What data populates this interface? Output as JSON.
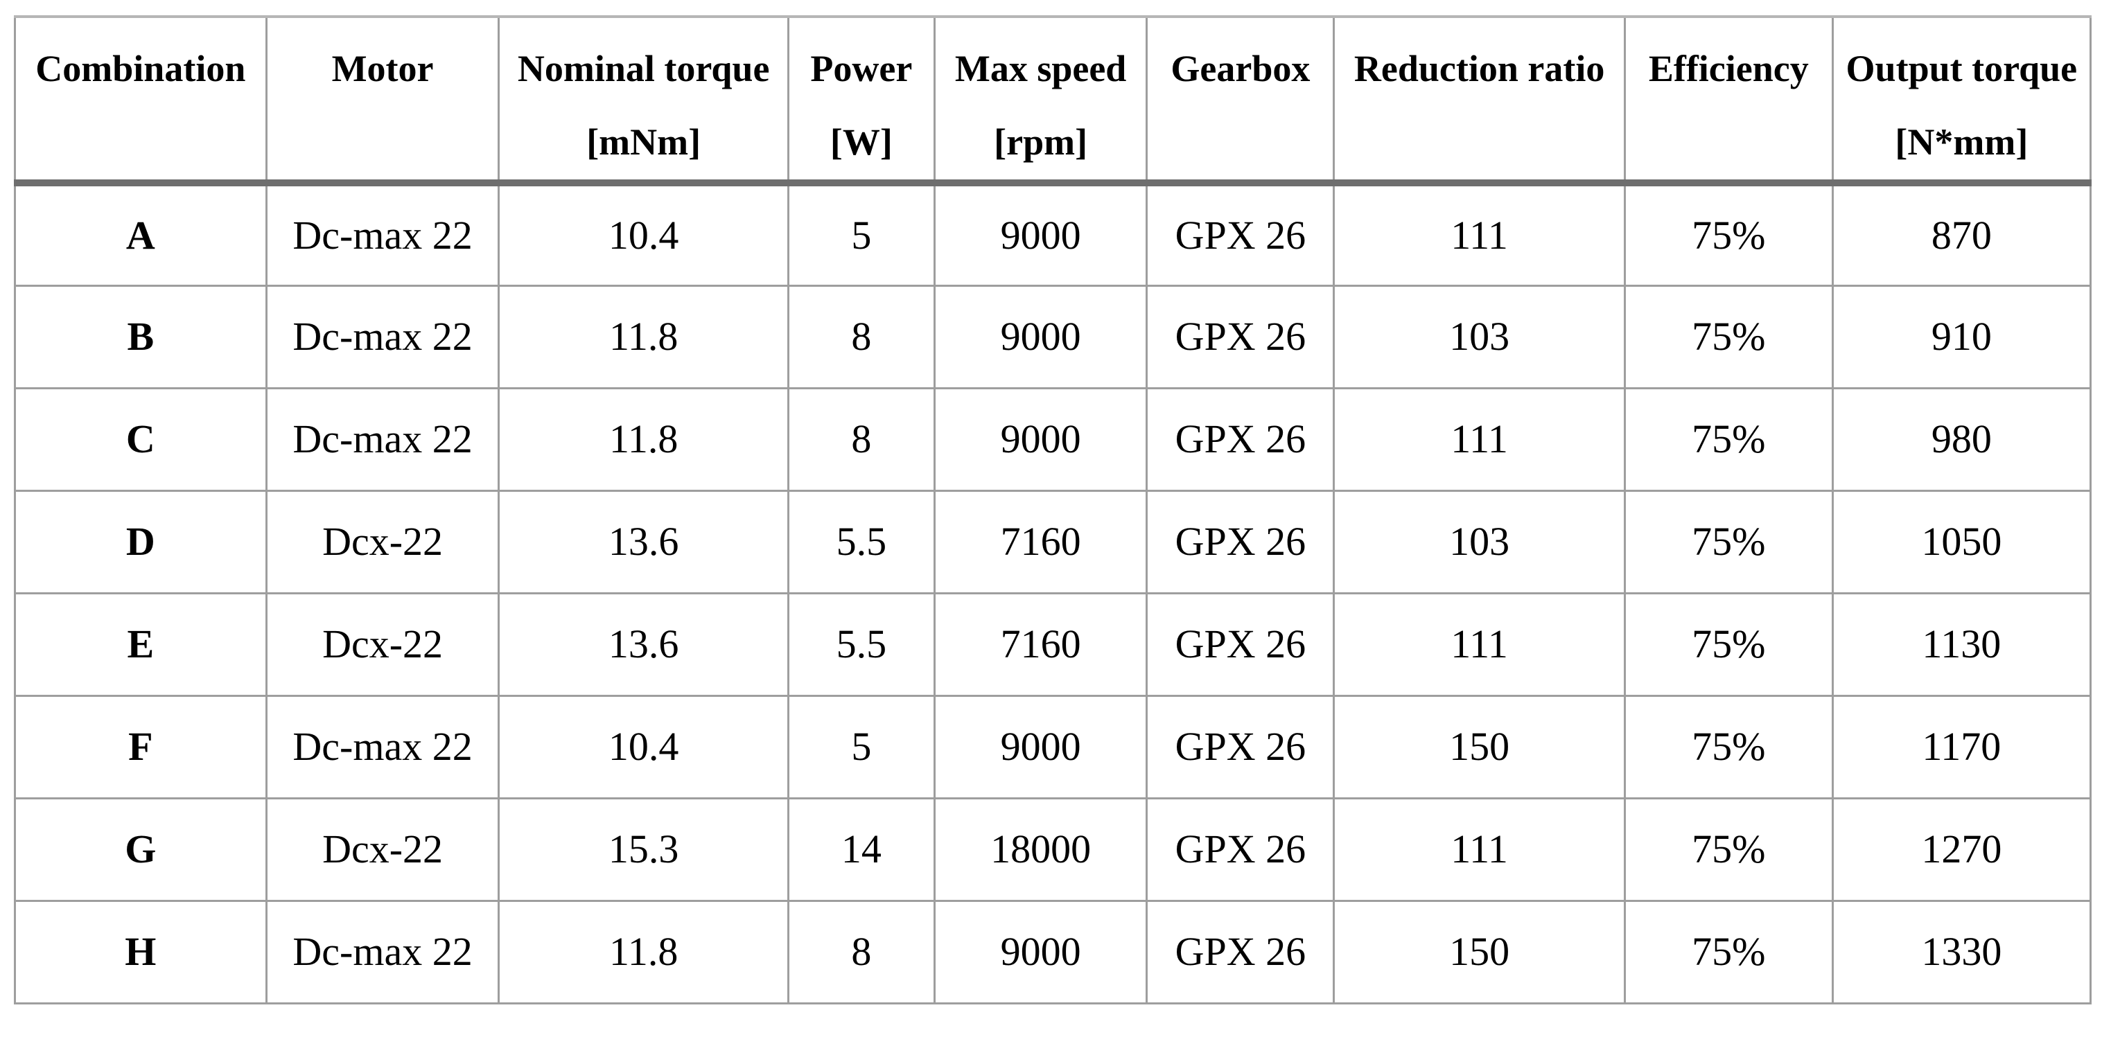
{
  "table": {
    "columns": [
      {
        "label": "Combination",
        "unit": ""
      },
      {
        "label": "Motor",
        "unit": ""
      },
      {
        "label": "Nominal torque",
        "unit": "[mNm]"
      },
      {
        "label": "Power",
        "unit": "[W]"
      },
      {
        "label": "Max speed",
        "unit": "[rpm]"
      },
      {
        "label": "Gearbox",
        "unit": ""
      },
      {
        "label": "Reduction ratio",
        "unit": ""
      },
      {
        "label": "Efficiency",
        "unit": ""
      },
      {
        "label": "Output torque",
        "unit": "[N*mm]"
      }
    ],
    "rows": [
      [
        "A",
        "Dc-max 22",
        "10.4",
        "5",
        "9000",
        "GPX 26",
        "111",
        "75%",
        "870"
      ],
      [
        "B",
        "Dc-max 22",
        "11.8",
        "8",
        "9000",
        "GPX 26",
        "103",
        "75%",
        "910"
      ],
      [
        "C",
        "Dc-max 22",
        "11.8",
        "8",
        "9000",
        "GPX 26",
        "111",
        "75%",
        "980"
      ],
      [
        "D",
        "Dcx-22",
        "13.6",
        "5.5",
        "7160",
        "GPX 26",
        "103",
        "75%",
        "1050"
      ],
      [
        "E",
        "Dcx-22",
        "13.6",
        "5.5",
        "7160",
        "GPX 26",
        "111",
        "75%",
        "1130"
      ],
      [
        "F",
        "Dc-max 22",
        "10.4",
        "5",
        "9000",
        "GPX 26",
        "150",
        "75%",
        "1170"
      ],
      [
        "G",
        "Dcx-22",
        "15.3",
        "14",
        "18000",
        "GPX 26",
        "111",
        "75%",
        "1270"
      ],
      [
        "H",
        "Dc-max 22",
        "11.8",
        "8",
        "9000",
        "GPX 26",
        "150",
        "75%",
        "1330"
      ]
    ],
    "colors": {
      "background": "#ffffff",
      "text": "#000000",
      "grid_border": "#9e9e9e",
      "top_border": "#b6b6b6",
      "header_separator": "#6e6e6e"
    }
  }
}
